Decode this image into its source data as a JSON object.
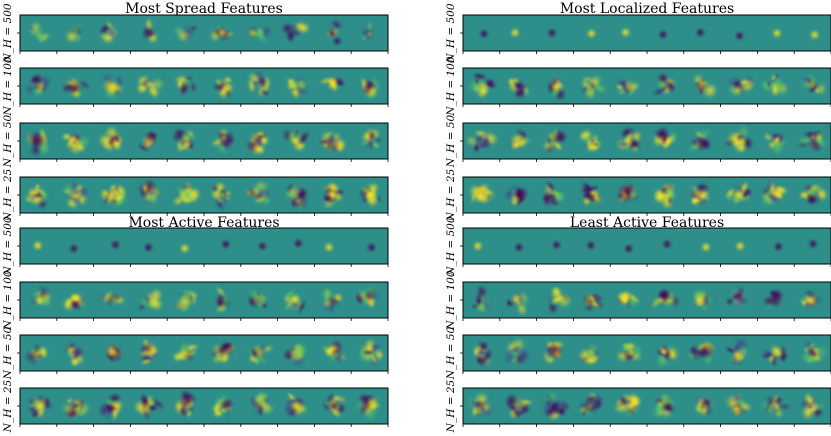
{
  "chart_data": {
    "type": "heatmap",
    "panels": [
      {
        "title": "Most Spread Features",
        "rows": [
          "N_H = 500",
          "N_H = 100",
          "N_H = 50",
          "N_H = 25"
        ],
        "features_per_row": 10
      },
      {
        "title": "Most Localized Features",
        "rows": [
          "N_H = 500",
          "N_H = 100",
          "N_H = 50",
          "N_H = 25"
        ],
        "features_per_row": 10
      },
      {
        "title": "Most Active Features",
        "rows": [
          "N_H = 500",
          "N_H = 100",
          "N_H = 50",
          "N_H = 25"
        ],
        "features_per_row": 10
      },
      {
        "title": "Least Active Features",
        "rows": [
          "N_H = 500",
          "N_H = 100",
          "N_H = 50",
          "N_H = 25"
        ],
        "features_per_row": 10
      }
    ],
    "colormap": [
      "#440154",
      "#3b528b",
      "#21918c",
      "#5ec962",
      "#fde725"
    ]
  }
}
